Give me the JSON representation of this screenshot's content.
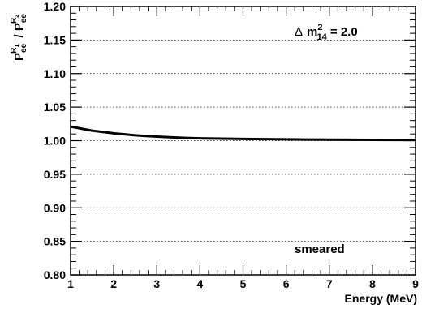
{
  "chart_data": {
    "type": "line",
    "title": "",
    "xlabel": "Energy (MeV)",
    "ylabel": {
      "base": "P",
      "sub": "ee",
      "sup_R": "R",
      "sup_index_1": "1",
      "sup_index_2": "2",
      "separator": " / "
    },
    "xlim": [
      1,
      9
    ],
    "ylim": [
      0.8,
      1.2
    ],
    "x_ticks": [
      1,
      2,
      3,
      4,
      5,
      6,
      7,
      8,
      9
    ],
    "y_ticks": [
      "0.80",
      "0.85",
      "0.90",
      "0.95",
      "1.00",
      "1.05",
      "1.10",
      "1.15",
      "1.20"
    ],
    "grid": "horizontal-dotted",
    "annotations": {
      "delta": "Δ",
      "mass": "m",
      "mass_sup": "2",
      "mass_sub": "14",
      "value_text": " = 2.0",
      "smeared": "smeared"
    },
    "series": [
      {
        "color": "#000000",
        "x": [
          1.0,
          1.25,
          1.5,
          1.75,
          2.0,
          2.25,
          2.5,
          2.75,
          3.0,
          3.25,
          3.5,
          3.75,
          4.0,
          4.5,
          5.0,
          5.5,
          6.0,
          6.5,
          7.0,
          7.5,
          8.0,
          8.5,
          9.0
        ],
        "y": [
          1.021,
          1.018,
          1.015,
          1.013,
          1.011,
          1.0095,
          1.008,
          1.007,
          1.006,
          1.0053,
          1.0046,
          1.004,
          1.0035,
          1.003,
          1.0025,
          1.0022,
          1.002,
          1.0017,
          1.0015,
          1.0013,
          1.0012,
          1.001,
          1.001
        ]
      }
    ]
  }
}
